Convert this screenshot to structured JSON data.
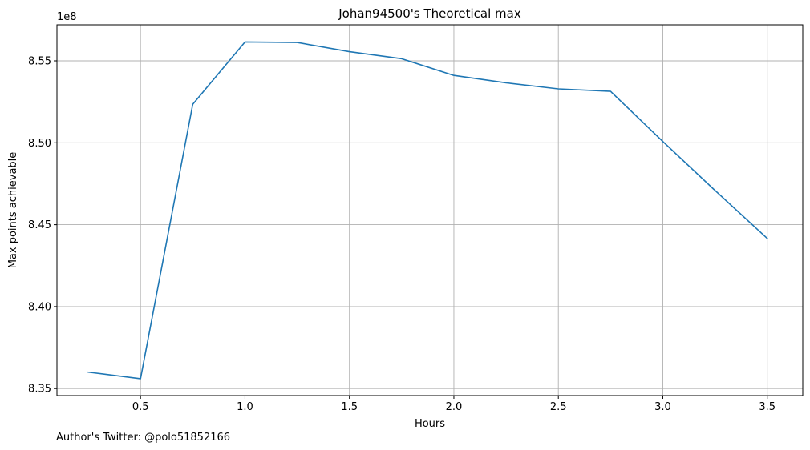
{
  "chart_data": {
    "type": "line",
    "title": "Johan94500's Theoretical max",
    "xlabel": "Hours",
    "ylabel": "Max points achievable",
    "y_offset_label": "1e8",
    "footer": "Author's Twitter: @polo51852166",
    "xlim": [
      0.1,
      3.67
    ],
    "ylim": [
      8.3457,
      8.572
    ],
    "x_ticks": [
      0.5,
      1.0,
      1.5,
      2.0,
      2.5,
      3.0,
      3.5
    ],
    "x_tick_labels": [
      "0.5",
      "1.0",
      "1.5",
      "2.0",
      "2.5",
      "3.0",
      "3.5"
    ],
    "y_ticks": [
      8.35,
      8.4,
      8.45,
      8.5,
      8.55
    ],
    "y_tick_labels": [
      "8.35",
      "8.40",
      "8.45",
      "8.50",
      "8.55"
    ],
    "grid": true,
    "series": [
      {
        "color": "#1f77b4",
        "x": [
          0.25,
          0.5,
          0.75,
          1.0,
          1.25,
          1.5,
          1.75,
          2.0,
          2.25,
          2.5,
          2.75,
          3.0,
          3.25,
          3.5
        ],
        "values": [
          8.36,
          8.356,
          8.5235,
          8.5615,
          8.5612,
          8.5556,
          8.5513,
          8.5411,
          8.5366,
          8.5329,
          8.5314,
          8.5008,
          8.4709,
          8.4416
        ]
      }
    ]
  }
}
